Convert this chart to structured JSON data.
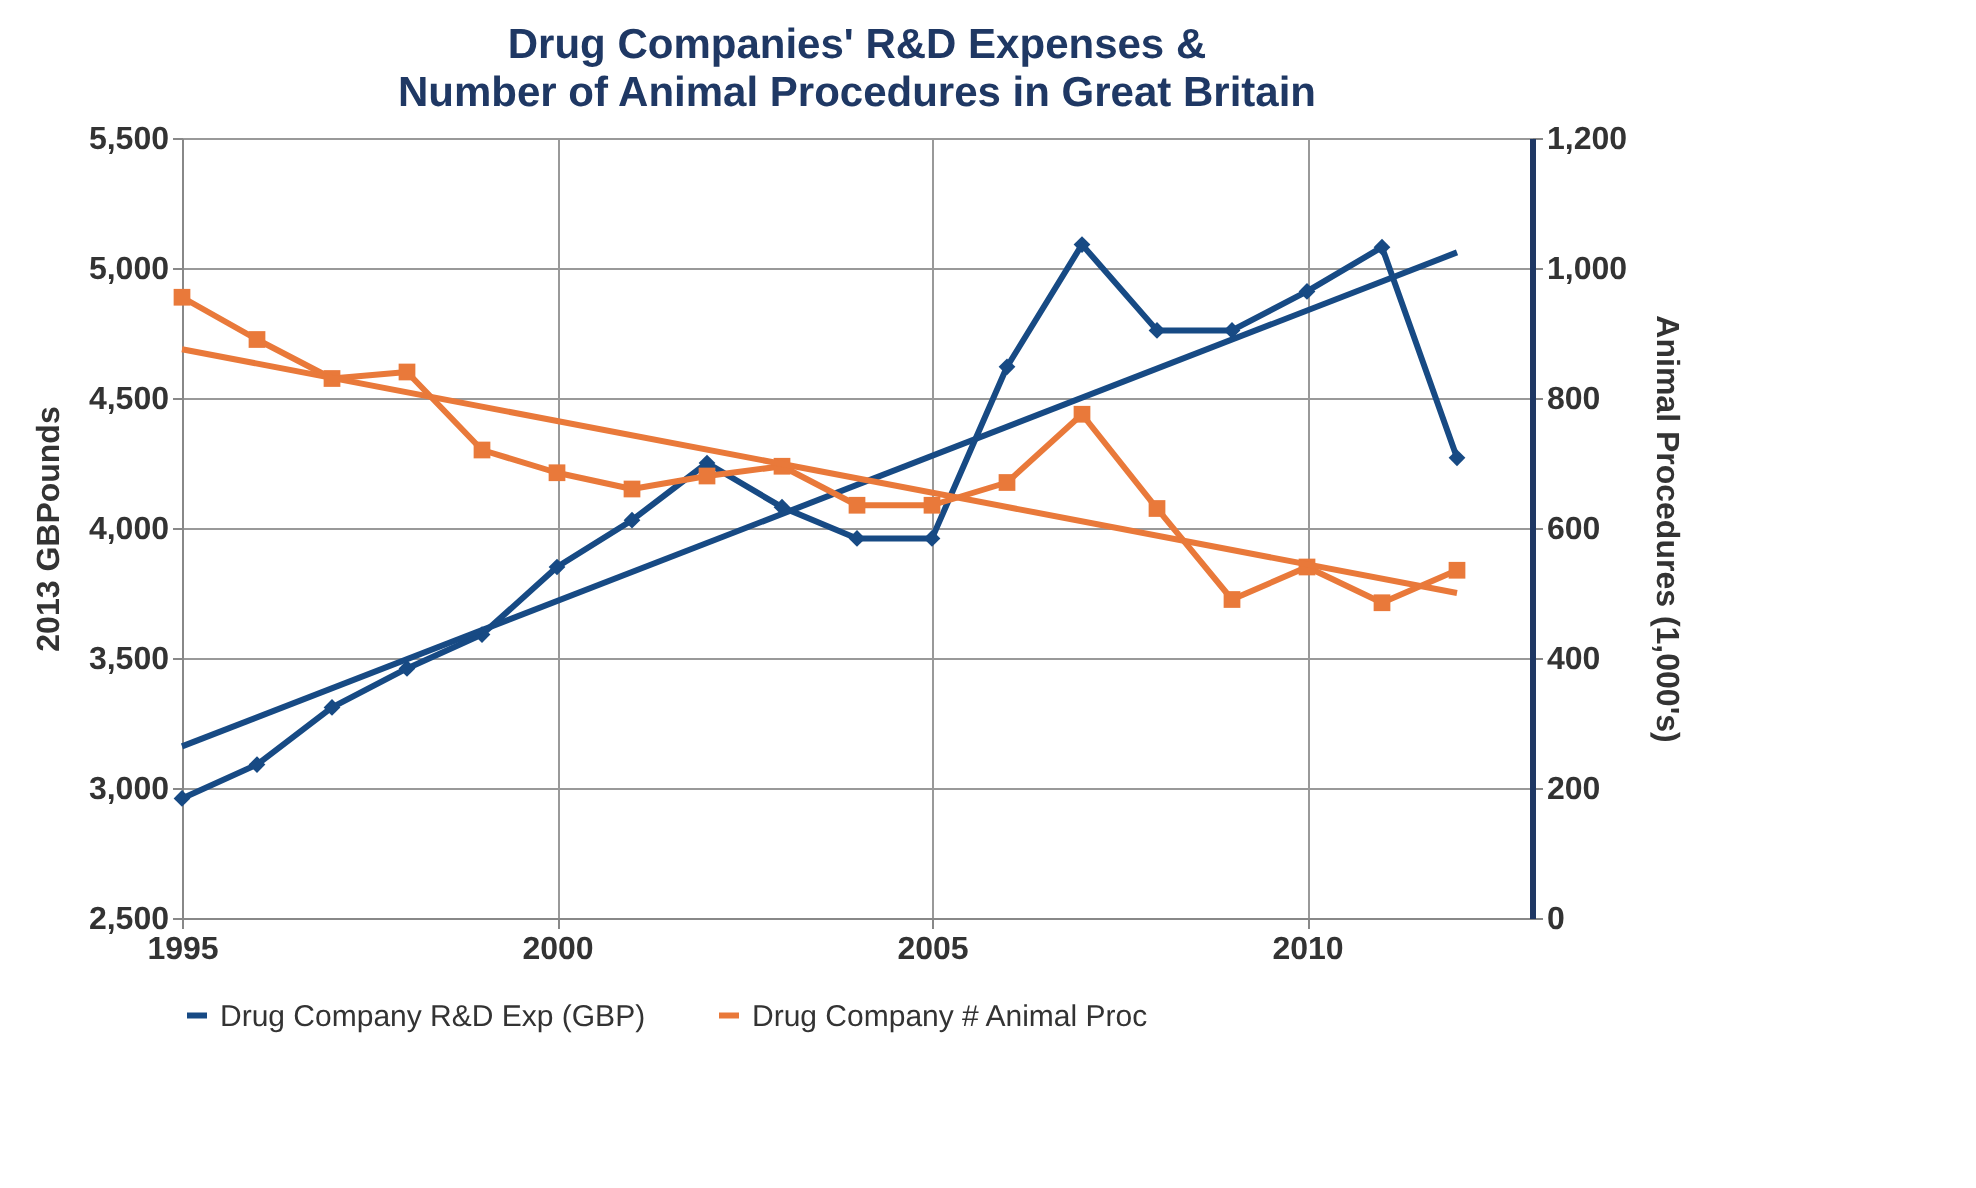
{
  "chart_data": {
    "type": "line",
    "title": "Drug Companies' R&D Expenses &",
    "subtitle": "Number of Animal Procedures in Great Britain",
    "ylabel": "2013 GBPounds",
    "y2label": "Animal Procedures (1,000's)",
    "x": [
      1995,
      1996,
      1997,
      1998,
      1999,
      2000,
      2001,
      2002,
      2003,
      2004,
      2005,
      2006,
      2007,
      2008,
      2009,
      2010,
      2011,
      2012
    ],
    "series": [
      {
        "name": "Drug Company R&D Exp (GBP)",
        "color": "#174a84",
        "marker": "diamond",
        "values": [
          2960,
          3090,
          3310,
          3460,
          3590,
          3850,
          4030,
          4250,
          4080,
          3960,
          3960,
          4620,
          5090,
          4760,
          4760,
          4910,
          5080,
          4270
        ]
      },
      {
        "name": "Drug Company  # Animal Proc",
        "color": "#e9793a",
        "marker": "square",
        "axis": "y2",
        "values": [
          955,
          890,
          830,
          840,
          720,
          685,
          660,
          680,
          695,
          635,
          635,
          670,
          775,
          630,
          490,
          540,
          485,
          535
        ]
      },
      {
        "color": "#174a84",
        "marker": "none",
        "values": [
          3160,
          null,
          null,
          null,
          null,
          null,
          null,
          null,
          null,
          null,
          null,
          null,
          null,
          null,
          null,
          null,
          null,
          5060
        ]
      },
      {
        "color": "#e9793a",
        "marker": "none",
        "axis": "y2",
        "values": [
          875,
          null,
          null,
          null,
          null,
          null,
          null,
          null,
          null,
          null,
          null,
          null,
          null,
          null,
          null,
          null,
          null,
          500
        ]
      }
    ],
    "xlim": [
      1995,
      2013
    ],
    "xticks": [
      1995,
      2000,
      2005,
      2010
    ],
    "ylim": [
      2500,
      5500
    ],
    "yticks": [
      {
        "value": 2500,
        "label": "2,500"
      },
      {
        "value": 3000,
        "label": "3,000"
      },
      {
        "value": 3500,
        "label": "3,500"
      },
      {
        "value": 4000,
        "label": "4,000"
      },
      {
        "value": 4500,
        "label": "4,500"
      },
      {
        "value": 5000,
        "label": "5,000"
      },
      {
        "value": 5500,
        "label": "5,500"
      }
    ],
    "y2lim": [
      0,
      1200
    ],
    "y2ticks": [
      0,
      200,
      400,
      600,
      800,
      {
        "value": 1000,
        "label": "1,000"
      },
      {
        "value": 1200,
        "label": "1,200"
      }
    ],
    "grid": true,
    "legend": "bottom",
    "line_style": "solid"
  }
}
